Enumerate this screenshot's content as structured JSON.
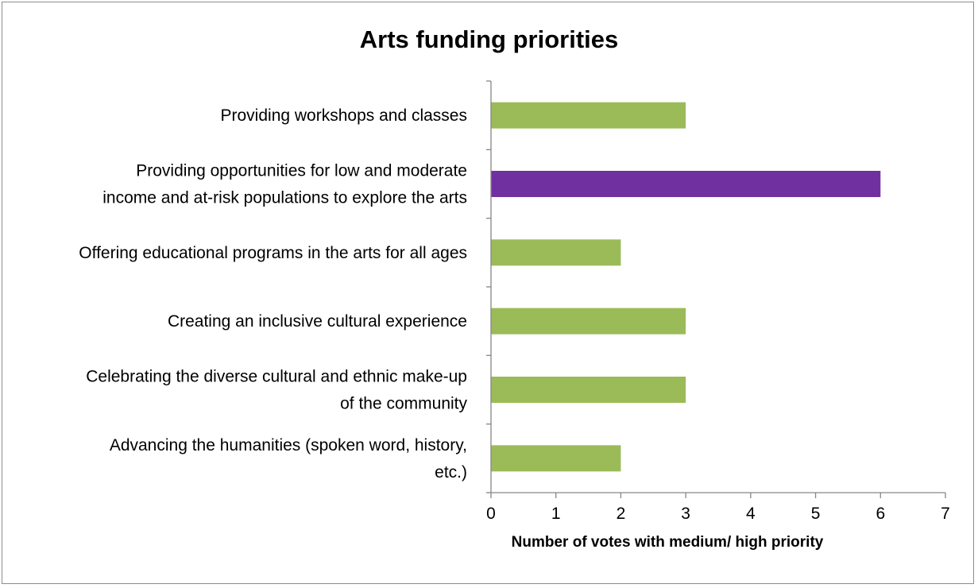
{
  "chart_data": {
    "type": "bar",
    "orientation": "horizontal",
    "title": "Arts funding priorities",
    "xlabel": "Number of votes with medium/ high priority",
    "ylabel": "",
    "xlim": [
      0,
      7
    ],
    "xticks": [
      "0",
      "1",
      "2",
      "3",
      "4",
      "5",
      "6",
      "7"
    ],
    "grid": false,
    "categories": [
      [
        "Providing workshops and classes"
      ],
      [
        "Providing opportunities for low and moderate",
        "income and at-risk populations to explore the arts"
      ],
      [
        "Offering educational programs in the arts for all ages"
      ],
      [
        "Creating an inclusive cultural experience"
      ],
      [
        "Celebrating the diverse cultural and ethnic make-up",
        "of the community"
      ],
      [
        "Advancing the humanities (spoken word, history,",
        "etc.)"
      ]
    ],
    "values": [
      3,
      6,
      2,
      3,
      3,
      2
    ],
    "colors": {
      "default_bar": "#9bbb59",
      "highlight_bar": "#7030a0",
      "axis": "#868686"
    },
    "highlight_index": 1
  }
}
